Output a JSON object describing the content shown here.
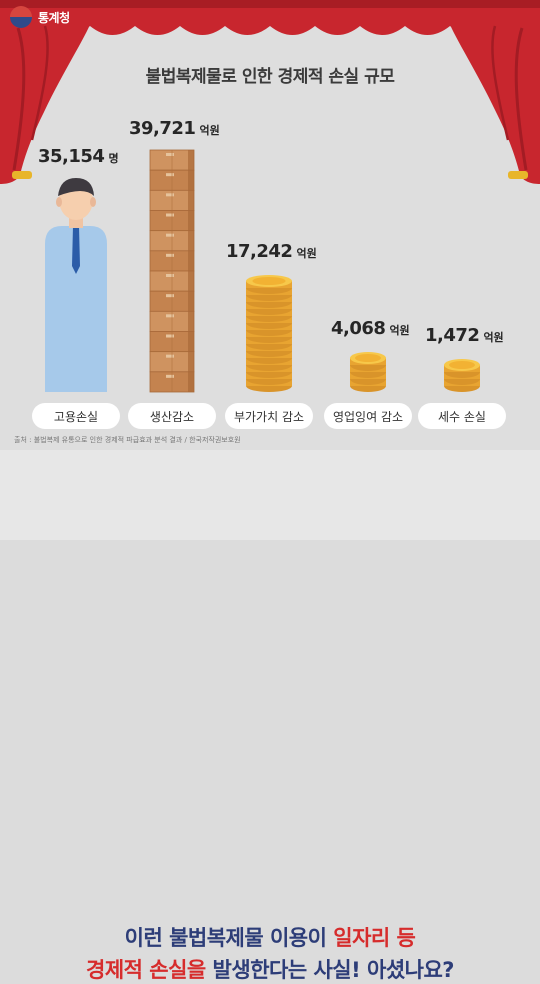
{
  "brand": {
    "name": "통계청"
  },
  "colors": {
    "curtain": "#c8262e",
    "banner_text": "#2d3d78",
    "highlight": "#d62c2c",
    "coin": "#f2b233",
    "box": "#c98a56",
    "person_shirt": "#a6c9ea"
  },
  "chart_data": {
    "type": "bar",
    "title": "불법복제물로 인한 경제적 손실 규모",
    "categories": [
      "고용손실",
      "생산감소",
      "부가가치 감소",
      "영업잉여 감소",
      "세수 손실"
    ],
    "series": [
      {
        "values": [
          35154,
          39721,
          17242,
          4068,
          1472
        ]
      }
    ],
    "value_labels": [
      "35,154",
      "39,721",
      "17,242",
      "4,068",
      "1,472"
    ],
    "units": [
      "명",
      "억원",
      "억원",
      "억원",
      "억원"
    ],
    "icons": [
      "person-icon",
      "box-stack-icon",
      "coin-stack-icon",
      "coin-stack-icon",
      "coin-stack-icon"
    ]
  },
  "source_note": "출처 : 불법복제 유통으로 인한 경제적 파급효과 분석 결과 / 한국저작권보호원",
  "banner": {
    "line1_a": "이런 불법복제물 이용이 ",
    "line1_hl": "일자리 등",
    "line2_hl": "경제적 손실을",
    "line2_b": " 발생한다는 사실! 아셨나요?"
  }
}
